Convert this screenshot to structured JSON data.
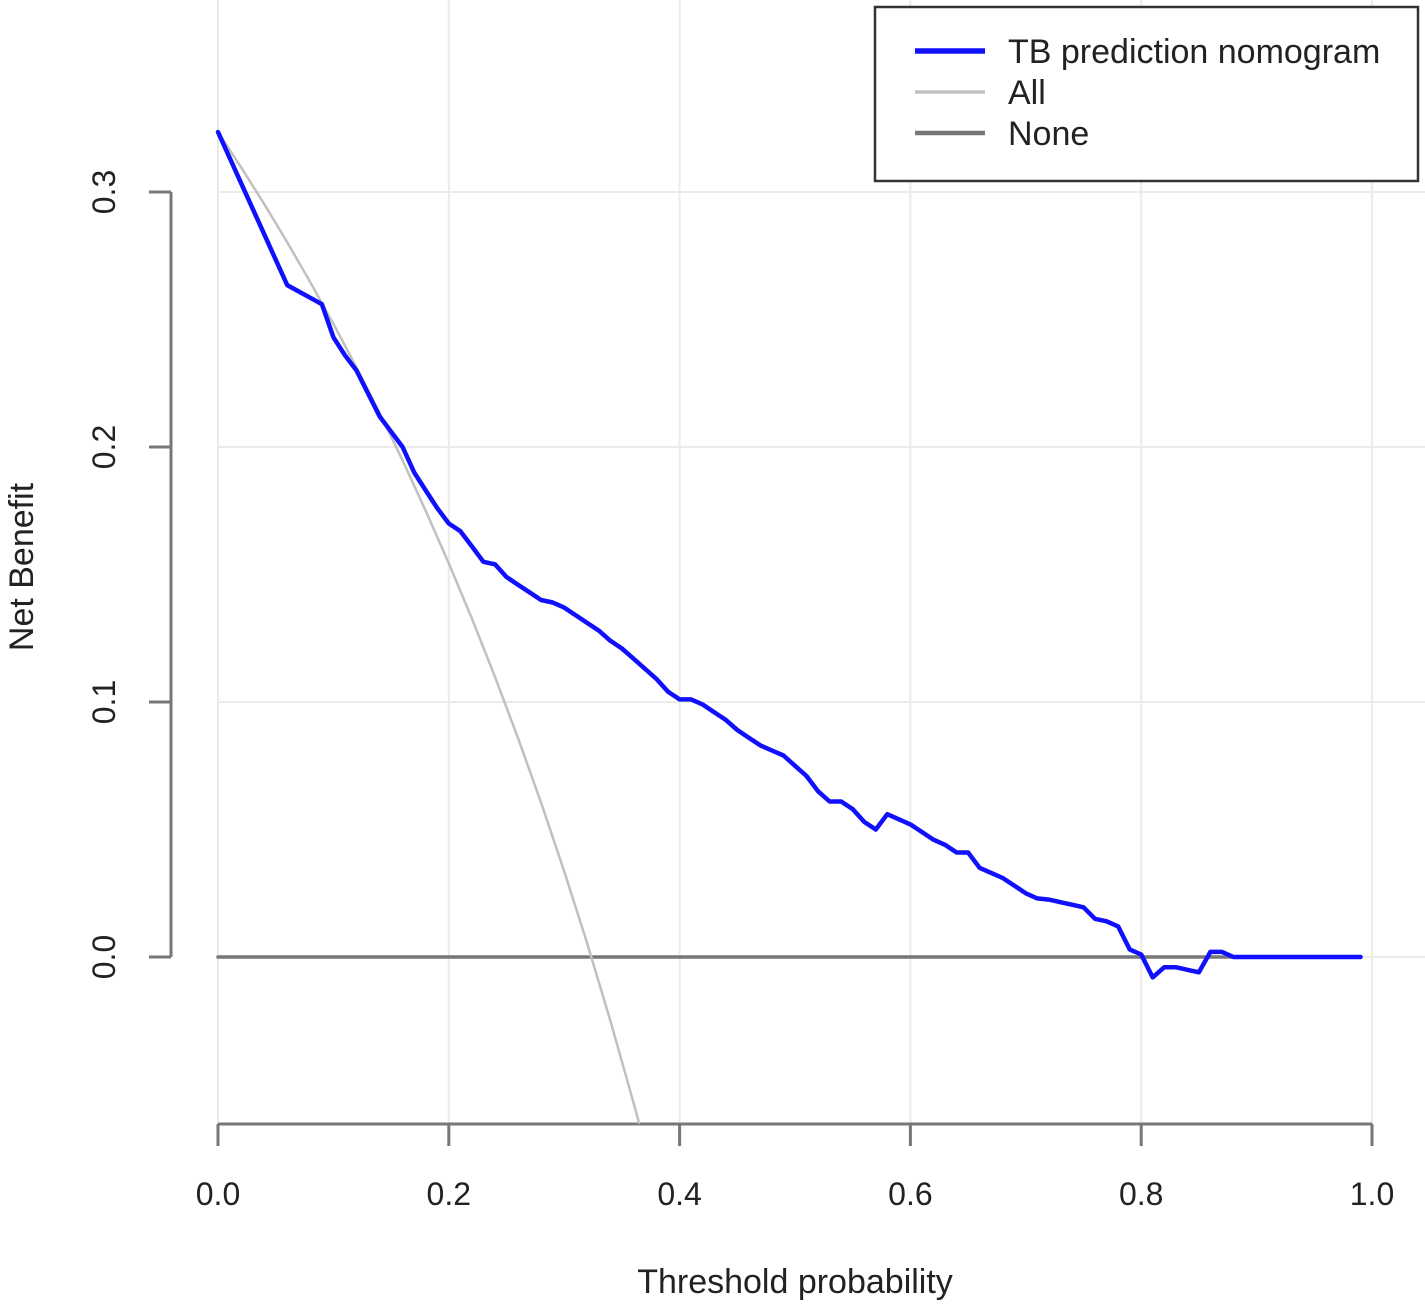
{
  "chart_data": {
    "type": "line",
    "title": "",
    "xlabel": "Threshold probability",
    "ylabel": "Net Benefit",
    "xlim": [
      0,
      1
    ],
    "ylim": [
      -0.065,
      0.33
    ],
    "grid": true,
    "legend_position": "top-right",
    "xticks": [
      0.0,
      0.2,
      0.4,
      0.6,
      0.8,
      1.0
    ],
    "xtick_labels": [
      "0.0",
      "0.2",
      "0.4",
      "0.6",
      "0.8",
      "1.0"
    ],
    "yticks": [
      0.0,
      0.1,
      0.2,
      0.3
    ],
    "ytick_labels": [
      "0.0",
      "0.1",
      "0.2",
      "0.3"
    ],
    "prevalence": 0.3235,
    "series": [
      {
        "name": "TB prediction nomogram",
        "color": "#1010ff",
        "x": [
          0.0,
          0.03,
          0.06,
          0.09,
          0.1,
          0.11,
          0.12,
          0.13,
          0.14,
          0.15,
          0.16,
          0.17,
          0.18,
          0.19,
          0.2,
          0.21,
          0.22,
          0.23,
          0.24,
          0.25,
          0.26,
          0.27,
          0.28,
          0.29,
          0.3,
          0.31,
          0.32,
          0.33,
          0.34,
          0.35,
          0.36,
          0.37,
          0.38,
          0.39,
          0.4,
          0.41,
          0.42,
          0.43,
          0.44,
          0.45,
          0.46,
          0.47,
          0.48,
          0.49,
          0.5,
          0.51,
          0.52,
          0.53,
          0.54,
          0.55,
          0.56,
          0.57,
          0.58,
          0.59,
          0.6,
          0.61,
          0.62,
          0.63,
          0.64,
          0.65,
          0.66,
          0.67,
          0.68,
          0.69,
          0.7,
          0.71,
          0.72,
          0.73,
          0.74,
          0.75,
          0.76,
          0.77,
          0.78,
          0.79,
          0.8,
          0.81,
          0.82,
          0.83,
          0.84,
          0.85,
          0.86,
          0.87,
          0.88,
          0.9,
          0.95,
          0.99
        ],
        "y": [
          0.3235,
          0.2935,
          0.2635,
          0.256,
          0.243,
          0.236,
          0.23,
          0.221,
          0.212,
          0.206,
          0.2,
          0.19,
          0.183,
          0.176,
          0.17,
          0.167,
          0.161,
          0.155,
          0.154,
          0.149,
          0.146,
          0.143,
          0.14,
          0.139,
          0.137,
          0.134,
          0.131,
          0.128,
          0.124,
          0.121,
          0.117,
          0.113,
          0.109,
          0.104,
          0.101,
          0.101,
          0.099,
          0.096,
          0.093,
          0.089,
          0.086,
          0.083,
          0.081,
          0.079,
          0.075,
          0.071,
          0.065,
          0.061,
          0.061,
          0.058,
          0.053,
          0.05,
          0.056,
          0.054,
          0.052,
          0.049,
          0.046,
          0.044,
          0.041,
          0.041,
          0.035,
          0.033,
          0.031,
          0.028,
          0.025,
          0.023,
          0.0225,
          0.0215,
          0.0205,
          0.0195,
          0.015,
          0.014,
          0.012,
          0.003,
          0.001,
          -0.008,
          -0.004,
          -0.004,
          -0.005,
          -0.006,
          0.002,
          0.002,
          0.0,
          0.0,
          0.0,
          0.0
        ]
      },
      {
        "name": "All",
        "color": "#c0c0c0",
        "x": [
          0.0,
          0.02,
          0.04,
          0.06,
          0.08,
          0.1,
          0.12,
          0.14,
          0.16,
          0.18,
          0.2,
          0.22,
          0.24,
          0.26,
          0.28,
          0.3,
          0.32,
          0.34,
          0.36,
          0.3648
        ],
        "y": [
          0.3235,
          0.3097,
          0.2953,
          0.2803,
          0.2646,
          0.2483,
          0.2312,
          0.2134,
          0.1947,
          0.175,
          0.1544,
          0.1327,
          0.1099,
          0.0859,
          0.0605,
          0.0336,
          0.0052,
          -0.025,
          -0.057,
          -0.065
        ]
      },
      {
        "name": "None",
        "color": "#777777",
        "x": [
          0.0,
          0.99
        ],
        "y": [
          0.0,
          0.0
        ]
      }
    ]
  }
}
